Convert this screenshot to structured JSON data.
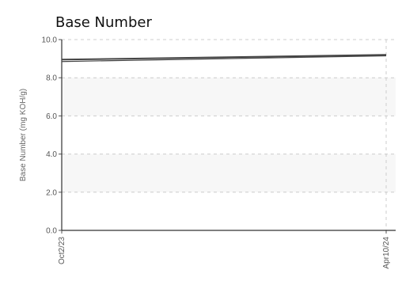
{
  "chart_data": {
    "type": "line",
    "title": "Base Number",
    "xlabel": "",
    "ylabel": "Base Number (mg KOH/g)",
    "ylim": [
      0,
      10
    ],
    "yticks": [
      "0.0",
      "2.0",
      "4.0",
      "6.0",
      "8.0",
      "10.0"
    ],
    "x": [
      "Oct2/23",
      "Apr10/24"
    ],
    "series": [
      {
        "values": [
          8.95,
          9.2
        ]
      },
      {
        "values": [
          8.85,
          9.15
        ]
      }
    ],
    "grid": true,
    "band_color": "#f7f7f7",
    "line_color": "#444444"
  }
}
